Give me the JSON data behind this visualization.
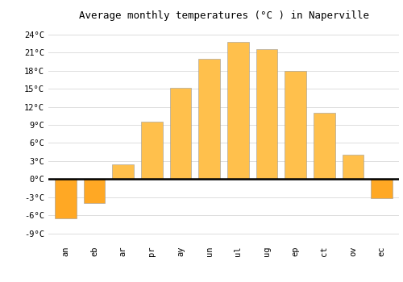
{
  "title": "Average monthly temperatures (°C ) in Naperville",
  "month_labels": [
    "an",
    "eb",
    "ar",
    "pr",
    "ay",
    "un",
    "ul",
    "ug",
    "ep",
    "ct",
    "ov",
    "ec"
  ],
  "values": [
    -6.5,
    -4.0,
    2.5,
    9.5,
    15.2,
    20.0,
    22.8,
    21.5,
    18.0,
    11.0,
    4.0,
    -3.2
  ],
  "bar_color_positive": "#FFC04C",
  "bar_color_negative": "#FFA824",
  "ylim": [
    -10.5,
    25.5
  ],
  "yticks": [
    -9,
    -6,
    -3,
    0,
    3,
    6,
    9,
    12,
    15,
    18,
    21,
    24
  ],
  "ytick_labels": [
    "-9°C",
    "-6°C",
    "-3°C",
    "0°C",
    "3°C",
    "6°C",
    "9°C",
    "12°C",
    "15°C",
    "18°C",
    "21°C",
    "24°C"
  ],
  "background_color": "#ffffff",
  "grid_color": "#dddddd",
  "title_fontsize": 9,
  "tick_fontsize": 7.5
}
